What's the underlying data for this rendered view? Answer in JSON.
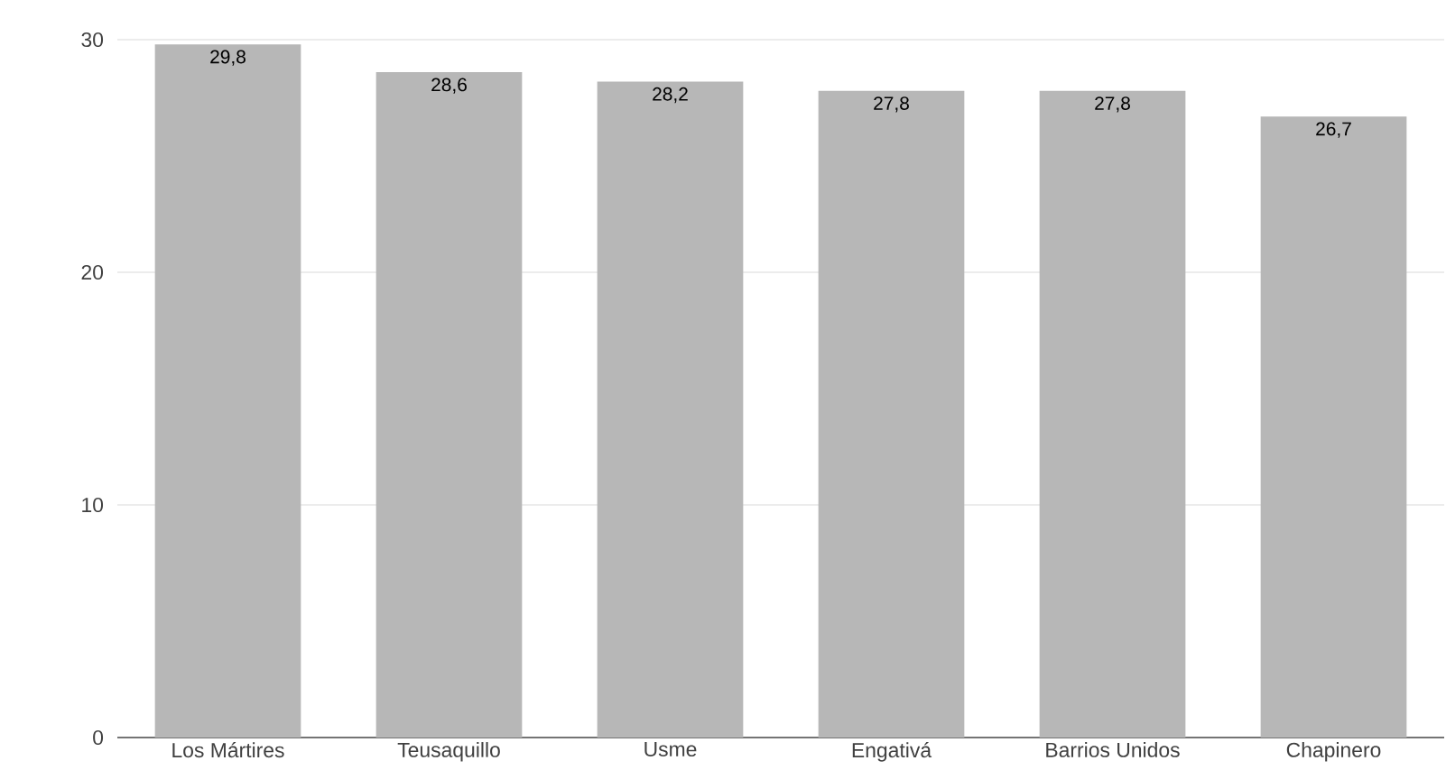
{
  "chart_data": {
    "type": "bar",
    "categories": [
      "Los Mártires",
      "Teusaquillo",
      "Usme",
      "Engativá",
      "Barrios Unidos",
      "Chapinero"
    ],
    "values": [
      29.8,
      28.6,
      28.2,
      27.8,
      27.8,
      26.7
    ],
    "value_labels": [
      "29,8",
      "28,6",
      "28,2",
      "27,8",
      "27,8",
      "26,7"
    ],
    "color": "#b7b7b7",
    "ylim": [
      0,
      30
    ],
    "yticks": [
      0,
      10,
      20,
      30
    ],
    "grid": "y"
  }
}
